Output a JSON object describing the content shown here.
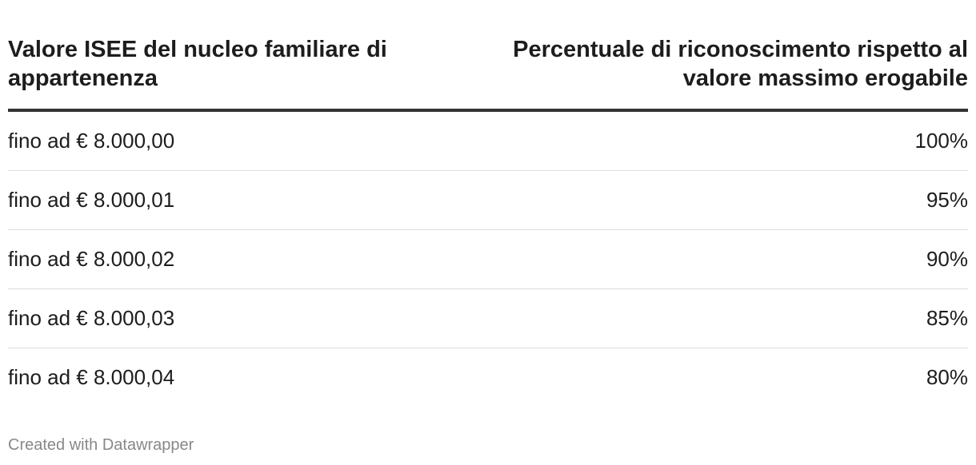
{
  "table": {
    "header": [
      "Valore ISEE del nucleo familiare di appartenenza",
      "Percentuale di riconoscimento rispetto al valore massimo erogabile"
    ],
    "rows": [
      [
        "fino ad € 8.000,00",
        "100%"
      ],
      [
        "fino ad € 8.000,01",
        "95%"
      ],
      [
        "fino ad € 8.000,02",
        "90%"
      ],
      [
        "fino ad € 8.000,03",
        "85%"
      ],
      [
        "fino ad € 8.000,04",
        "80%"
      ]
    ]
  },
  "footer": "Created with Datawrapper"
}
